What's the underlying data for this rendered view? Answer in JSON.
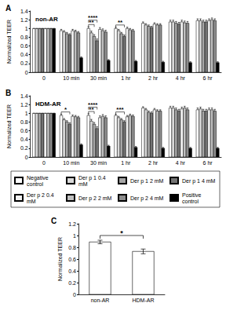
{
  "chart_data": [
    {
      "type": "bar",
      "label": "A",
      "title": "non-AR",
      "y_label": "Normalized TEER",
      "categories": [
        "0",
        "10 min",
        "30 min",
        "1 hr",
        "2 hr",
        "4 hr",
        "6 hr"
      ],
      "series": [
        {
          "name": "Negative control",
          "color": "#ffffff",
          "values": [
            1,
            0.95,
            1.0,
            1.0,
            1.12,
            1.15,
            1.18
          ],
          "errors": [
            0,
            0.03,
            0.04,
            0.03,
            0.03,
            0.04,
            0.04
          ]
        },
        {
          "name": "Der p 1 0.4 mM",
          "color": "#d9d9d9",
          "values": [
            1,
            0.92,
            0.9,
            0.95,
            1.08,
            1.15,
            1.18
          ],
          "errors": [
            0,
            0.03,
            0.04,
            0.03,
            0.03,
            0.04,
            0.04
          ]
        },
        {
          "name": "Der p 1 2 mM",
          "color": "#a6a6a6",
          "values": [
            1,
            0.88,
            0.82,
            0.88,
            1.05,
            1.12,
            1.15
          ],
          "errors": [
            0,
            0.03,
            0.04,
            0.03,
            0.03,
            0.04,
            0.04
          ]
        },
        {
          "name": "Der p 1 4 mM",
          "color": "#737373",
          "values": [
            1,
            0.85,
            0.72,
            0.82,
            1.02,
            1.1,
            1.15
          ],
          "errors": [
            0,
            0.03,
            0.04,
            0.03,
            0.03,
            0.04,
            0.04
          ]
        },
        {
          "name": "Der p 2 0.4 mM",
          "color": "#f2f2f2",
          "values": [
            1,
            0.95,
            0.98,
            1.0,
            1.1,
            1.15,
            1.18
          ],
          "errors": [
            0,
            0.03,
            0.04,
            0.03,
            0.03,
            0.04,
            0.04
          ]
        },
        {
          "name": "Der p 2 2 mM",
          "color": "#bfbfbf",
          "values": [
            1,
            0.93,
            0.95,
            0.97,
            1.08,
            1.13,
            1.2
          ],
          "errors": [
            0,
            0.03,
            0.04,
            0.03,
            0.03,
            0.04,
            0.04
          ]
        },
        {
          "name": "Der p 2 4 mM",
          "color": "#8c8c8c",
          "values": [
            1,
            0.9,
            0.92,
            0.95,
            1.08,
            1.12,
            1.18
          ],
          "errors": [
            0,
            0.03,
            0.04,
            0.03,
            0.03,
            0.04,
            0.04
          ]
        },
        {
          "name": "Positive control",
          "color": "#000000",
          "values": [
            1,
            0.33,
            0.27,
            0.25,
            0.23,
            0.22,
            0.22
          ],
          "errors": [
            0,
            0.02,
            0.02,
            0.02,
            0.02,
            0.02,
            0.02
          ]
        }
      ],
      "ylim": [
        0,
        1.4
      ],
      "yticks": [
        0,
        0.2,
        0.4,
        0.6,
        0.8,
        1,
        1.2,
        1.4
      ],
      "grid": false,
      "legend": "bottom",
      "annotations": [
        {
          "category": "30 min",
          "from": "Negative control",
          "to": "Der p 1 2 mM",
          "label": "**"
        },
        {
          "category": "30 min",
          "from": "Negative control",
          "to": "Der p 1 4 mM",
          "label": "****"
        },
        {
          "category": "1 hr",
          "from": "Negative control",
          "to": "Der p 1 4 mM",
          "label": "**"
        }
      ]
    },
    {
      "type": "bar",
      "label": "B",
      "title": "HDM-AR",
      "y_label": "Normalized TEER",
      "categories": [
        "0",
        "10 min",
        "30 min",
        "1 hr",
        "2 hr",
        "4 hr",
        "6 hr"
      ],
      "series": [
        {
          "name": "Negative control",
          "color": "#ffffff",
          "values": [
            1,
            0.95,
            0.95,
            0.95,
            1.12,
            1.12,
            1.08
          ],
          "errors": [
            0,
            0.03,
            0.04,
            0.03,
            0.03,
            0.04,
            0.04
          ]
        },
        {
          "name": "Der p 1 0.4 mM",
          "color": "#d9d9d9",
          "values": [
            1,
            0.85,
            0.82,
            0.9,
            1.08,
            1.12,
            1.1
          ],
          "errors": [
            0,
            0.03,
            0.04,
            0.03,
            0.03,
            0.04,
            0.04
          ]
        },
        {
          "name": "Der p 1 2 mM",
          "color": "#a6a6a6",
          "values": [
            1,
            0.8,
            0.75,
            0.85,
            1.02,
            1.08,
            1.05
          ],
          "errors": [
            0,
            0.03,
            0.04,
            0.03,
            0.03,
            0.04,
            0.04
          ]
        },
        {
          "name": "Der p 1 4 mM",
          "color": "#737373",
          "values": [
            1,
            0.75,
            0.65,
            0.8,
            1.0,
            1.05,
            1.05
          ],
          "errors": [
            0,
            0.03,
            0.04,
            0.03,
            0.03,
            0.04,
            0.04
          ]
        },
        {
          "name": "Der p 2 0.4 mM",
          "color": "#f2f2f2",
          "values": [
            1,
            0.93,
            0.9,
            0.92,
            1.08,
            1.1,
            1.08
          ],
          "errors": [
            0,
            0.03,
            0.04,
            0.03,
            0.03,
            0.04,
            0.04
          ]
        },
        {
          "name": "Der p 2 2 mM",
          "color": "#bfbfbf",
          "values": [
            1,
            0.92,
            0.93,
            0.95,
            1.05,
            1.12,
            1.08
          ],
          "errors": [
            0,
            0.03,
            0.04,
            0.03,
            0.03,
            0.04,
            0.04
          ]
        },
        {
          "name": "Der p 2 4 mM",
          "color": "#8c8c8c",
          "values": [
            1,
            0.9,
            0.9,
            0.93,
            1.05,
            1.08,
            1.05
          ],
          "errors": [
            0,
            0.03,
            0.04,
            0.03,
            0.03,
            0.04,
            0.04
          ]
        },
        {
          "name": "Positive control",
          "color": "#000000",
          "values": [
            1,
            0.28,
            0.25,
            0.22,
            0.2,
            0.2,
            0.2
          ],
          "errors": [
            0,
            0.02,
            0.02,
            0.02,
            0.02,
            0.02,
            0.02
          ]
        }
      ],
      "ylim": [
        0,
        1.4
      ],
      "yticks": [
        0,
        0.2,
        0.4,
        0.6,
        0.8,
        1,
        1.2,
        1.4
      ],
      "grid": false,
      "annotations": [
        {
          "category": "10 min",
          "from": "Negative control",
          "to": "Der p 1 4 mM",
          "label": "*"
        },
        {
          "category": "30 min",
          "from": "Negative control",
          "to": "Der p 1 2 mM",
          "label": "**"
        },
        {
          "category": "30 min",
          "from": "Negative control",
          "to": "Der p 1 4 mM",
          "label": "****"
        },
        {
          "category": "1 hr",
          "from": "Negative control",
          "to": "Der p 1 4 mM",
          "label": "***"
        }
      ]
    },
    {
      "type": "bar",
      "label": "C",
      "y_label": "Normalized TEER",
      "categories": [
        "non-AR",
        "HDM-AR"
      ],
      "values": [
        0.89,
        0.73
      ],
      "errors": [
        0.03,
        0.04
      ],
      "color": "#ffffff",
      "ylim": [
        0,
        1.2
      ],
      "yticks": [
        0,
        0.2,
        0.4,
        0.6,
        0.8,
        1,
        1.2
      ],
      "grid": false,
      "annotations": [
        {
          "from": "non-AR",
          "to": "HDM-AR",
          "label": "*"
        }
      ]
    }
  ]
}
